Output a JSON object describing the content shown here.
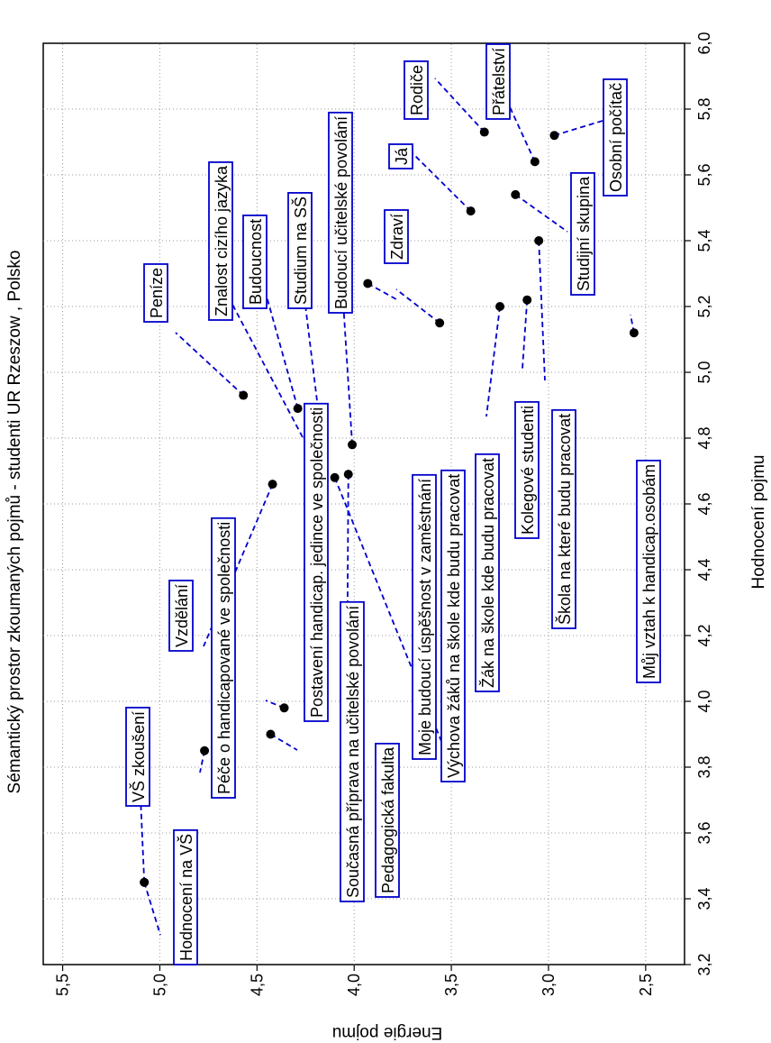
{
  "chart_data": {
    "type": "scatter",
    "title": "Sémantický prostor zkoumaných pojmů - studenti UR Rzeszow , Polsko",
    "xlabel": "Hodnocení pojmu",
    "ylabel": "Energie pojmu",
    "xlim": [
      3.2,
      6.0
    ],
    "ylim": [
      2.3,
      5.6
    ],
    "x_ticks": [
      "3,2",
      "3,4",
      "3,6",
      "3,8",
      "4,0",
      "4,2",
      "4,4",
      "4,6",
      "4,8",
      "5,0",
      "5,2",
      "5,4",
      "5,6",
      "5,8",
      "6,0"
    ],
    "y_ticks": [
      "2,5",
      "3,0",
      "3,5",
      "4,0",
      "4,5",
      "5,0",
      "5,5"
    ],
    "grid": true,
    "orientation": "rotated-90-counterclockwise",
    "points": [
      {
        "label": "Hodnocení na VŠ",
        "x": 3.45,
        "y": 5.08
      },
      {
        "label": "VŠ zkoušení",
        "x": 3.45,
        "y": 5.08
      },
      {
        "label": "Péče o handicapované ve společnosti",
        "x": 3.85,
        "y": 4.77
      },
      {
        "label": "Postavení handicap. jedince ve společnosti",
        "x": 3.98,
        "y": 4.36
      },
      {
        "label": "Současná příprava na učitelské povolání",
        "x": 3.9,
        "y": 4.43
      },
      {
        "label": "Vzdělání",
        "x": 4.66,
        "y": 4.42
      },
      {
        "label": "Pedagogická fakulta",
        "x": 4.69,
        "y": 4.03
      },
      {
        "label": "Moje budoucí úspěšnost v zaměstnání",
        "x": 5.27,
        "y": 3.93
      },
      {
        "label": "Peníze",
        "x": 4.93,
        "y": 4.57
      },
      {
        "label": "Znalost cizího jazyka",
        "x": 4.73,
        "y": 4.2
      },
      {
        "label": "Budoucnost",
        "x": 4.89,
        "y": 4.29
      },
      {
        "label": "Studium na SŠ",
        "x": 4.86,
        "y": 4.18
      },
      {
        "label": "Budoucí učitelské povolání",
        "x": 4.78,
        "y": 4.01
      },
      {
        "label": "Zdraví",
        "x": 5.15,
        "y": 3.56
      },
      {
        "label": "Já",
        "x": 5.49,
        "y": 3.4
      },
      {
        "label": "Výchova žáků na škole kde budu pracovat",
        "x": 4.68,
        "y": 4.1
      },
      {
        "label": "Žák na škole kde budu pracovat",
        "x": 5.2,
        "y": 3.25
      },
      {
        "label": "Kolegové studenti",
        "x": 5.22,
        "y": 3.11
      },
      {
        "label": "Škola na které budu pracovat",
        "x": 5.4,
        "y": 3.05
      },
      {
        "label": "Rodiče",
        "x": 5.73,
        "y": 3.33
      },
      {
        "label": "Přátelství",
        "x": 5.64,
        "y": 3.07
      },
      {
        "label": "Studijní skupina",
        "x": 5.54,
        "y": 3.17
      },
      {
        "label": "Osobní počítač",
        "x": 5.72,
        "y": 2.97
      },
      {
        "label": "Můj vztah k handicap.osobám",
        "x": 5.12,
        "y": 2.56
      }
    ]
  }
}
